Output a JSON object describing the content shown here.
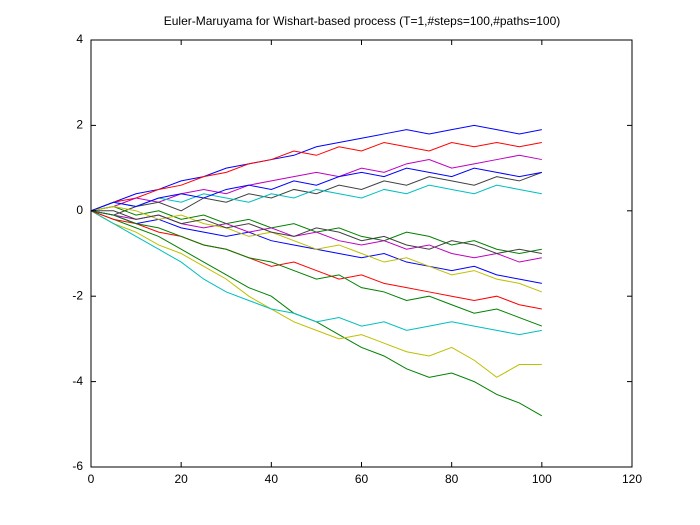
{
  "chart_data": {
    "type": "line",
    "title": "Euler-Maruyama for Wishart-based process (T=1,#steps=100,#paths=100)",
    "x": [
      0,
      5,
      10,
      15,
      20,
      25,
      30,
      35,
      40,
      45,
      50,
      55,
      60,
      65,
      70,
      75,
      80,
      85,
      90,
      95,
      100
    ],
    "xlim": [
      0,
      120
    ],
    "xticks": [
      0,
      20,
      40,
      60,
      80,
      100,
      120
    ],
    "ylim": [
      -6,
      4
    ],
    "yticks": [
      -6,
      -4,
      -2,
      0,
      2,
      4
    ],
    "series": [
      {
        "color": "#0000ff",
        "values": [
          0,
          0.2,
          0.4,
          0.5,
          0.7,
          0.8,
          1.0,
          1.1,
          1.2,
          1.3,
          1.5,
          1.6,
          1.7,
          1.8,
          1.9,
          1.8,
          1.9,
          2.0,
          1.9,
          1.8,
          1.9
        ]
      },
      {
        "color": "#008000",
        "values": [
          0,
          -0.2,
          -0.4,
          -0.6,
          -0.9,
          -1.2,
          -1.5,
          -1.8,
          -2.0,
          -2.4,
          -2.6,
          -2.9,
          -3.2,
          -3.4,
          -3.7,
          -3.9,
          -3.8,
          -4.0,
          -4.3,
          -4.5,
          -4.8
        ]
      },
      {
        "color": "#bfbf00",
        "values": [
          0,
          -0.3,
          -0.5,
          -0.8,
          -1.0,
          -1.3,
          -1.6,
          -2.0,
          -2.3,
          -2.6,
          -2.8,
          -3.0,
          -2.9,
          -3.1,
          -3.3,
          -3.4,
          -3.2,
          -3.5,
          -3.9,
          -3.6,
          -3.6
        ]
      },
      {
        "color": "#00bfbf",
        "values": [
          0,
          -0.3,
          -0.6,
          -0.9,
          -1.2,
          -1.6,
          -1.9,
          -2.1,
          -2.3,
          -2.4,
          -2.6,
          -2.5,
          -2.7,
          -2.6,
          -2.8,
          -2.7,
          -2.6,
          -2.7,
          -2.8,
          -2.9,
          -2.8
        ]
      },
      {
        "color": "#ff0000",
        "values": [
          0,
          0.2,
          0.3,
          0.5,
          0.6,
          0.8,
          0.9,
          1.1,
          1.2,
          1.4,
          1.3,
          1.5,
          1.4,
          1.6,
          1.5,
          1.4,
          1.6,
          1.5,
          1.6,
          1.5,
          1.6
        ]
      },
      {
        "color": "#bf00bf",
        "values": [
          0,
          0.1,
          0.3,
          0.2,
          0.4,
          0.5,
          0.4,
          0.6,
          0.7,
          0.8,
          0.9,
          0.8,
          1.0,
          0.9,
          1.1,
          1.2,
          1.0,
          1.1,
          1.2,
          1.3,
          1.2
        ]
      },
      {
        "color": "#404040",
        "values": [
          0,
          -0.1,
          0.1,
          0.2,
          0.0,
          0.3,
          0.2,
          0.4,
          0.3,
          0.5,
          0.4,
          0.6,
          0.5,
          0.7,
          0.6,
          0.8,
          0.7,
          0.6,
          0.8,
          0.7,
          0.9
        ]
      },
      {
        "color": "#0000ff",
        "values": [
          0,
          -0.1,
          -0.3,
          -0.2,
          -0.4,
          -0.5,
          -0.6,
          -0.5,
          -0.7,
          -0.8,
          -0.9,
          -1.0,
          -1.1,
          -1.0,
          -1.2,
          -1.3,
          -1.4,
          -1.3,
          -1.5,
          -1.6,
          -1.7
        ]
      },
      {
        "color": "#008000",
        "values": [
          0,
          0.1,
          -0.1,
          0.0,
          -0.2,
          -0.1,
          -0.3,
          -0.2,
          -0.4,
          -0.3,
          -0.5,
          -0.4,
          -0.6,
          -0.7,
          -0.5,
          -0.6,
          -0.8,
          -0.7,
          -0.9,
          -1.0,
          -0.9
        ]
      },
      {
        "color": "#ff0000",
        "values": [
          0,
          -0.2,
          -0.3,
          -0.5,
          -0.6,
          -0.8,
          -0.9,
          -1.1,
          -1.3,
          -1.2,
          -1.4,
          -1.6,
          -1.5,
          -1.7,
          -1.8,
          -1.9,
          -2.0,
          -2.1,
          -2.0,
          -2.2,
          -2.3
        ]
      },
      {
        "color": "#00bfbf",
        "values": [
          0,
          0.2,
          0.1,
          0.3,
          0.2,
          0.4,
          0.3,
          0.2,
          0.4,
          0.3,
          0.5,
          0.4,
          0.3,
          0.5,
          0.4,
          0.6,
          0.5,
          0.4,
          0.6,
          0.5,
          0.4
        ]
      },
      {
        "color": "#bf00bf",
        "values": [
          0,
          -0.1,
          -0.2,
          -0.1,
          -0.3,
          -0.4,
          -0.3,
          -0.5,
          -0.4,
          -0.6,
          -0.5,
          -0.7,
          -0.8,
          -0.7,
          -0.9,
          -0.8,
          -1.0,
          -1.1,
          -1.0,
          -1.2,
          -1.1
        ]
      },
      {
        "color": "#bfbf00",
        "values": [
          0,
          0.1,
          0.0,
          -0.2,
          -0.1,
          -0.3,
          -0.4,
          -0.6,
          -0.5,
          -0.7,
          -0.9,
          -0.8,
          -1.0,
          -1.2,
          -1.1,
          -1.3,
          -1.5,
          -1.4,
          -1.6,
          -1.7,
          -1.9
        ]
      },
      {
        "color": "#404040",
        "values": [
          0,
          0.0,
          -0.2,
          -0.1,
          -0.3,
          -0.2,
          -0.4,
          -0.3,
          -0.5,
          -0.6,
          -0.4,
          -0.5,
          -0.7,
          -0.6,
          -0.8,
          -0.9,
          -0.7,
          -0.8,
          -1.0,
          -0.9,
          -1.0
        ]
      },
      {
        "color": "#0000ff",
        "values": [
          0,
          0.2,
          0.1,
          0.3,
          0.4,
          0.3,
          0.5,
          0.6,
          0.5,
          0.7,
          0.6,
          0.8,
          0.9,
          0.8,
          1.0,
          0.9,
          0.8,
          1.0,
          0.9,
          0.8,
          0.9
        ]
      },
      {
        "color": "#008000",
        "values": [
          0,
          -0.1,
          -0.3,
          -0.4,
          -0.6,
          -0.8,
          -0.9,
          -1.1,
          -1.2,
          -1.4,
          -1.6,
          -1.5,
          -1.8,
          -1.9,
          -2.1,
          -2.0,
          -2.2,
          -2.4,
          -2.3,
          -2.5,
          -2.7
        ]
      }
    ]
  }
}
